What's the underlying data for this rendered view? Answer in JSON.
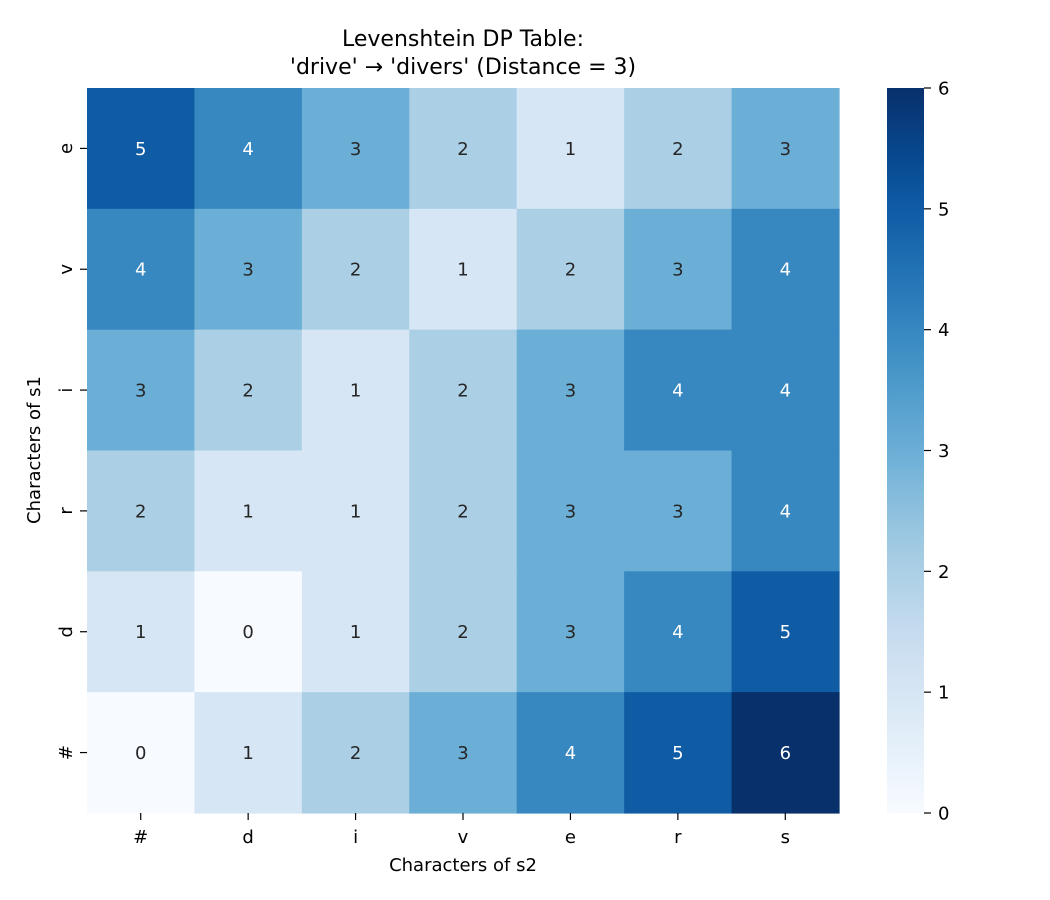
{
  "chart_data": {
    "type": "heatmap",
    "title": [
      "Levenshtein DP Table:",
      "'drive' → 'divers' (Distance = 3)"
    ],
    "xlabel": "Characters of s2",
    "ylabel": "Characters of s1",
    "x_categories": [
      "#",
      "d",
      "i",
      "v",
      "e",
      "r",
      "s"
    ],
    "y_categories": [
      "e",
      "v",
      "i",
      "r",
      "d",
      "#"
    ],
    "values": [
      [
        5,
        4,
        3,
        2,
        1,
        2,
        3
      ],
      [
        4,
        3,
        2,
        1,
        2,
        3,
        4
      ],
      [
        3,
        2,
        1,
        2,
        3,
        4,
        4
      ],
      [
        2,
        1,
        1,
        2,
        3,
        3,
        4
      ],
      [
        1,
        0,
        1,
        2,
        3,
        4,
        5
      ],
      [
        0,
        1,
        2,
        3,
        4,
        5,
        6
      ]
    ],
    "colormap": "Blues",
    "vmin": 0,
    "vmax": 6,
    "colorbar_ticks": [
      0,
      1,
      2,
      3,
      4,
      5,
      6
    ],
    "annotated": true,
    "grid": false
  }
}
